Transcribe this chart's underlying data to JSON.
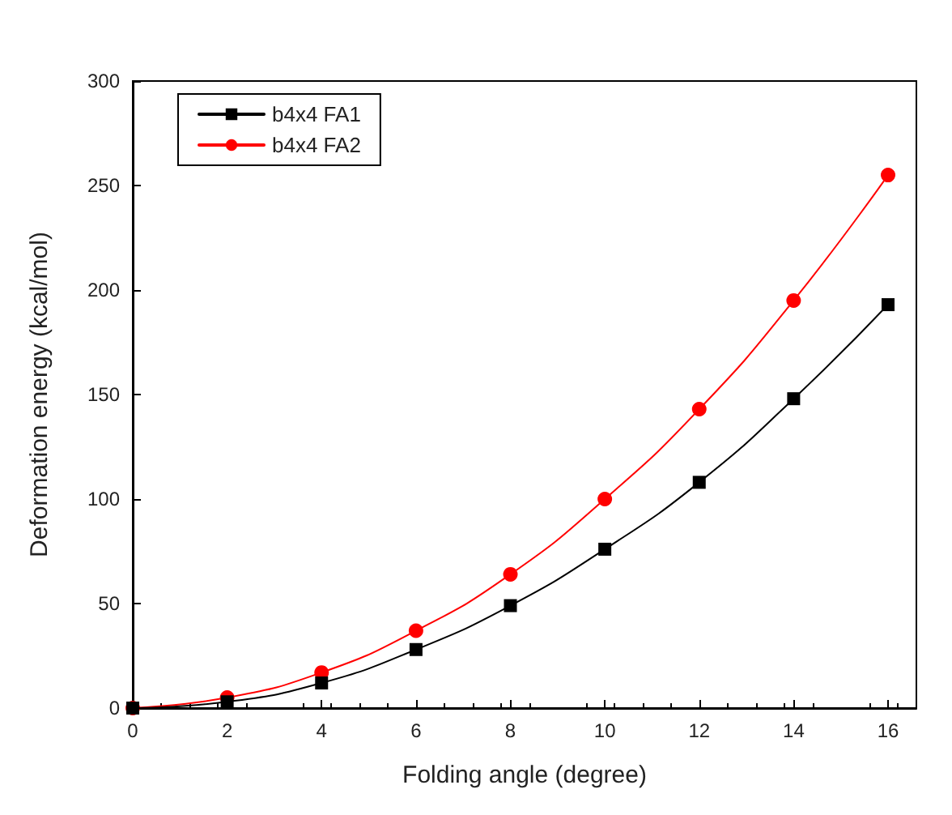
{
  "chart_data": {
    "type": "line",
    "xlabel": "Folding angle (degree)",
    "ylabel": "Deformation energy (kcal/mol)",
    "x": [
      0,
      2,
      4,
      6,
      8,
      10,
      12,
      14,
      16
    ],
    "series": [
      {
        "name": "b4x4 FA1",
        "color": "#000000",
        "marker": "square",
        "values": [
          0,
          3,
          12,
          28,
          49,
          76,
          108,
          148,
          193
        ]
      },
      {
        "name": "b4x4 FA2",
        "color": "#ff0000",
        "marker": "circle",
        "values": [
          0,
          5,
          17,
          37,
          64,
          100,
          143,
          195,
          255
        ]
      }
    ],
    "xlim": [
      0,
      16.6
    ],
    "xticks": [
      0,
      2,
      4,
      6,
      8,
      10,
      12,
      14,
      16
    ],
    "ylim": [
      0,
      300
    ],
    "yticks": [
      0,
      50,
      100,
      150,
      200,
      250,
      300
    ],
    "grid": false,
    "legend": "top left",
    "line_style": "solid"
  }
}
